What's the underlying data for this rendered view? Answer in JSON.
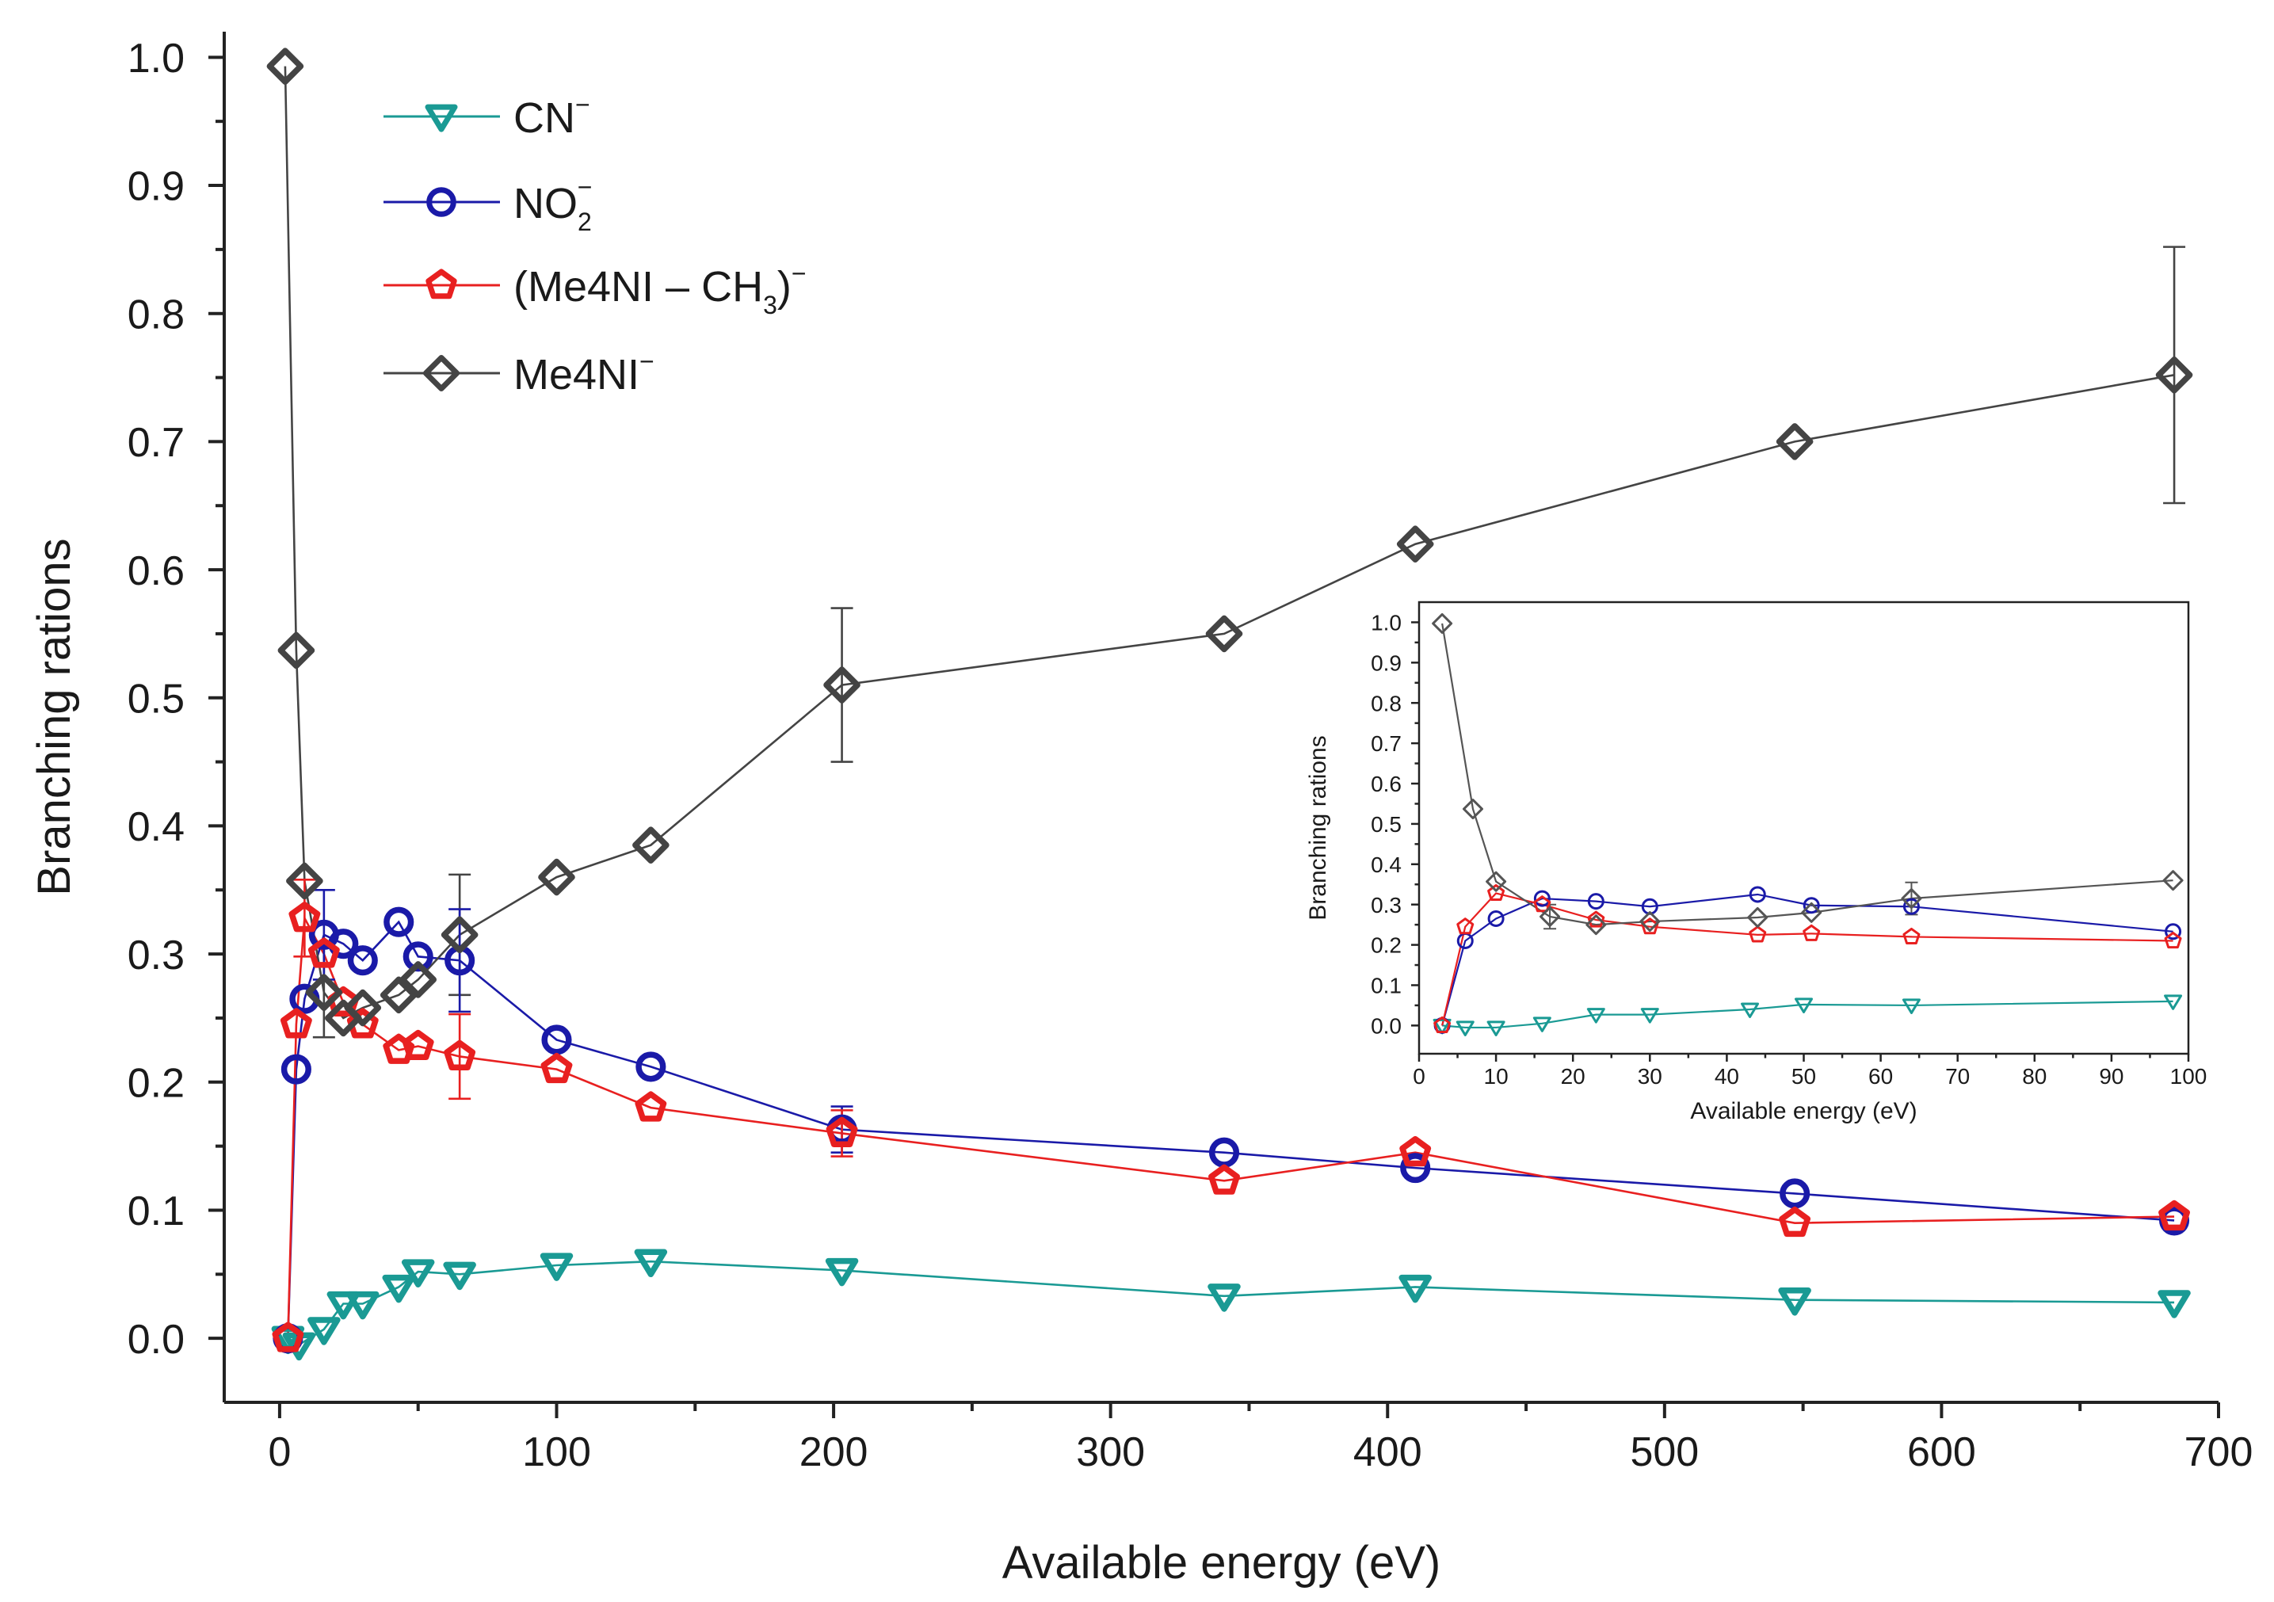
{
  "chart_data": [
    {
      "id": "main",
      "type": "line",
      "title": "",
      "xlabel": "Available energy (eV)",
      "ylabel": "Branching rations",
      "xlim": [
        -20,
        700
      ],
      "ylim": [
        -0.05,
        1.02
      ],
      "xticks": [
        "0",
        "100",
        "200",
        "300",
        "400",
        "500",
        "600",
        "700"
      ],
      "yticks": [
        "0.0",
        "0.1",
        "0.2",
        "0.3",
        "0.4",
        "0.5",
        "0.6",
        "0.7",
        "0.8",
        "0.9",
        "1.0"
      ],
      "legend_position": "top-left",
      "series": [
        {
          "name": "CN",
          "sup": "−",
          "color": "#1a9a94",
          "marker": "triangle-down",
          "points": [
            [
              3,
              0.0
            ],
            [
              7,
              -0.005
            ],
            [
              16,
              0.007
            ],
            [
              23,
              0.027
            ],
            [
              30,
              0.027
            ],
            [
              43,
              0.04
            ],
            [
              50,
              0.052
            ],
            [
              65,
              0.05
            ],
            [
              100,
              0.057
            ],
            [
              134,
              0.06
            ],
            [
              203,
              0.053
            ],
            [
              341,
              0.033
            ],
            [
              410,
              0.04
            ],
            [
              547,
              0.03
            ],
            [
              684,
              0.028
            ]
          ]
        },
        {
          "name": "NO",
          "sub": "2",
          "sup": "−",
          "color": "#1a1aa8",
          "marker": "circle",
          "points": [
            [
              3,
              0.0
            ],
            [
              6,
              0.21
            ],
            [
              9,
              0.265
            ],
            [
              16,
              0.315
            ],
            [
              23,
              0.308
            ],
            [
              30,
              0.295
            ],
            [
              43,
              0.325
            ],
            [
              50,
              0.298
            ],
            [
              65,
              0.295
            ],
            [
              100,
              0.233
            ],
            [
              134,
              0.212
            ],
            [
              203,
              0.163
            ],
            [
              341,
              0.145
            ],
            [
              410,
              0.133
            ],
            [
              547,
              0.113
            ],
            [
              684,
              0.092
            ]
          ]
        },
        {
          "name": "(Me4NI – CH",
          "sub": "3",
          "suffix": ")",
          "sup": "−",
          "color": "#e82020",
          "marker": "pentagon",
          "points": [
            [
              3,
              0.0
            ],
            [
              6,
              0.245
            ],
            [
              9,
              0.328
            ],
            [
              16,
              0.3
            ],
            [
              23,
              0.262
            ],
            [
              30,
              0.245
            ],
            [
              43,
              0.225
            ],
            [
              50,
              0.228
            ],
            [
              65,
              0.22
            ],
            [
              100,
              0.21
            ],
            [
              134,
              0.18
            ],
            [
              203,
              0.16
            ],
            [
              341,
              0.123
            ],
            [
              410,
              0.145
            ],
            [
              547,
              0.09
            ],
            [
              684,
              0.095
            ]
          ]
        },
        {
          "name": "Me4NI",
          "sup": "−",
          "color": "#444444",
          "marker": "diamond",
          "points": [
            [
              2,
              0.993
            ],
            [
              6,
              0.537
            ],
            [
              9,
              0.357
            ],
            [
              16,
              0.27
            ],
            [
              23,
              0.25
            ],
            [
              30,
              0.258
            ],
            [
              43,
              0.268
            ],
            [
              50,
              0.28
            ],
            [
              65,
              0.315
            ],
            [
              100,
              0.36
            ],
            [
              134,
              0.385
            ],
            [
              203,
              0.51
            ],
            [
              341,
              0.55
            ],
            [
              410,
              0.62
            ],
            [
              547,
              0.7
            ],
            [
              684,
              0.752
            ]
          ]
        }
      ],
      "error_bars": [
        {
          "series": "Me4NI",
          "x": 203,
          "y": 0.51,
          "err": 0.06
        },
        {
          "series": "Me4NI",
          "x": 684,
          "y": 0.752,
          "err": 0.1
        },
        {
          "series": "Me4NI",
          "x": 65,
          "y": 0.315,
          "err": 0.047
        },
        {
          "series": "Me4NI",
          "x": 16,
          "y": 0.27,
          "err": 0.035
        },
        {
          "series": "NO",
          "x": 16,
          "y": 0.315,
          "err": 0.035
        },
        {
          "series": "NO",
          "x": 203,
          "y": 0.163,
          "err": 0.018
        },
        {
          "series": "NO",
          "x": 65,
          "y": 0.295,
          "err": 0.04
        },
        {
          "series": "(Me4NI – CH3)",
          "x": 65,
          "y": 0.22,
          "err": 0.033
        },
        {
          "series": "(Me4NI – CH3)",
          "x": 203,
          "y": 0.16,
          "err": 0.018
        },
        {
          "series": "(Me4NI – CH3)",
          "x": 9,
          "y": 0.328,
          "err": 0.03
        }
      ]
    },
    {
      "id": "inset",
      "type": "line",
      "title": "",
      "xlabel": "Available energy (eV)",
      "ylabel": "Branching rations",
      "xlim": [
        0,
        100
      ],
      "ylim": [
        -0.07,
        1.05
      ],
      "xticks": [
        "0",
        "10",
        "20",
        "30",
        "40",
        "50",
        "60",
        "70",
        "80",
        "90",
        "100"
      ],
      "yticks": [
        "0.0",
        "0.1",
        "0.2",
        "0.3",
        "0.4",
        "0.5",
        "0.6",
        "0.7",
        "0.8",
        "0.9",
        "1.0"
      ],
      "series": [
        {
          "name": "CN",
          "color": "#1a9a94",
          "marker": "triangle-down",
          "points": [
            [
              3,
              0.0
            ],
            [
              6,
              -0.005
            ],
            [
              10,
              -0.005
            ],
            [
              16,
              0.005
            ],
            [
              23,
              0.027
            ],
            [
              30,
              0.027
            ],
            [
              43,
              0.04
            ],
            [
              50,
              0.052
            ],
            [
              64,
              0.05
            ],
            [
              98,
              0.06
            ]
          ]
        },
        {
          "name": "NO",
          "color": "#1a1aa8",
          "marker": "circle",
          "points": [
            [
              3,
              0.0
            ],
            [
              6,
              0.21
            ],
            [
              10,
              0.265
            ],
            [
              16,
              0.315
            ],
            [
              23,
              0.308
            ],
            [
              30,
              0.295
            ],
            [
              44,
              0.325
            ],
            [
              51,
              0.298
            ],
            [
              64,
              0.295
            ],
            [
              98,
              0.233
            ]
          ]
        },
        {
          "name": "(Me4NI – CH3)",
          "color": "#e82020",
          "marker": "pentagon",
          "points": [
            [
              3,
              0.0
            ],
            [
              6,
              0.245
            ],
            [
              10,
              0.328
            ],
            [
              16,
              0.3
            ],
            [
              23,
              0.262
            ],
            [
              30,
              0.245
            ],
            [
              44,
              0.225
            ],
            [
              51,
              0.228
            ],
            [
              64,
              0.22
            ],
            [
              98,
              0.21
            ]
          ]
        },
        {
          "name": "Me4NI",
          "color": "#555555",
          "marker": "diamond",
          "points": [
            [
              3,
              0.997
            ],
            [
              7,
              0.537
            ],
            [
              10,
              0.357
            ],
            [
              17,
              0.27
            ],
            [
              23,
              0.25
            ],
            [
              30,
              0.258
            ],
            [
              44,
              0.268
            ],
            [
              51,
              0.28
            ],
            [
              64,
              0.315
            ],
            [
              98,
              0.36
            ]
          ]
        }
      ],
      "error_bars": [
        {
          "series": "Me4NI",
          "x": 64,
          "y": 0.315,
          "err": 0.04
        },
        {
          "series": "Me4NI",
          "x": 17,
          "y": 0.27,
          "err": 0.03
        }
      ]
    }
  ]
}
